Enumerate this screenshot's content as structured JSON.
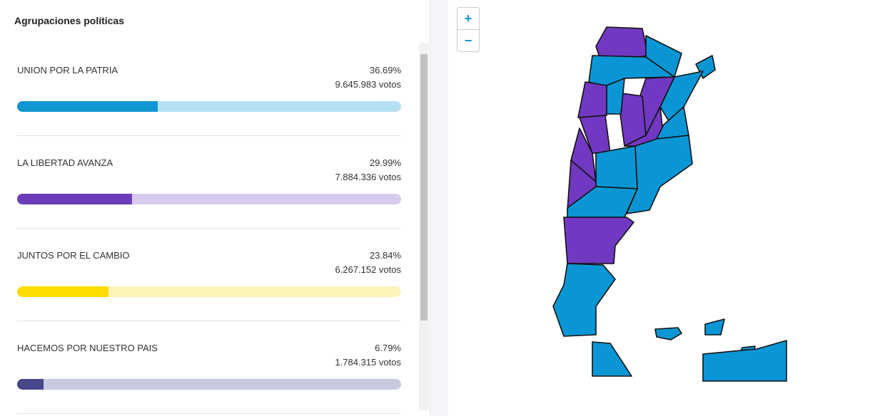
{
  "panel": {
    "title": "Agrupaciones políticas",
    "parties": [
      {
        "name": "UNION POR LA PATRIA",
        "percent": {
          "value": 36.69,
          "label": "36.69%"
        },
        "votes": "9.645.983 votos",
        "color": "#1196d3",
        "track": "#b5e0f3"
      },
      {
        "name": "LA LIBERTAD AVANZA",
        "percent": {
          "value": 29.99,
          "label": "29.99%"
        },
        "votes": "7.884.336 votos",
        "color": "#6c3db8",
        "track": "#d6cbee"
      },
      {
        "name": "JUNTOS POR EL CAMBIO",
        "percent": {
          "value": 23.84,
          "label": "23.84%"
        },
        "votes": "6.267.152 votos",
        "color": "#ffdc00",
        "track": "#fbf3b8"
      },
      {
        "name": "HACEMOS POR NUESTRO PAIS",
        "percent": {
          "value": 6.79,
          "label": "6.79%"
        },
        "votes": "1.784.315 votos",
        "color": "#45468c",
        "track": "#c9c9df"
      }
    ]
  },
  "map": {
    "zoom_in": "+",
    "zoom_out": "−"
  }
}
